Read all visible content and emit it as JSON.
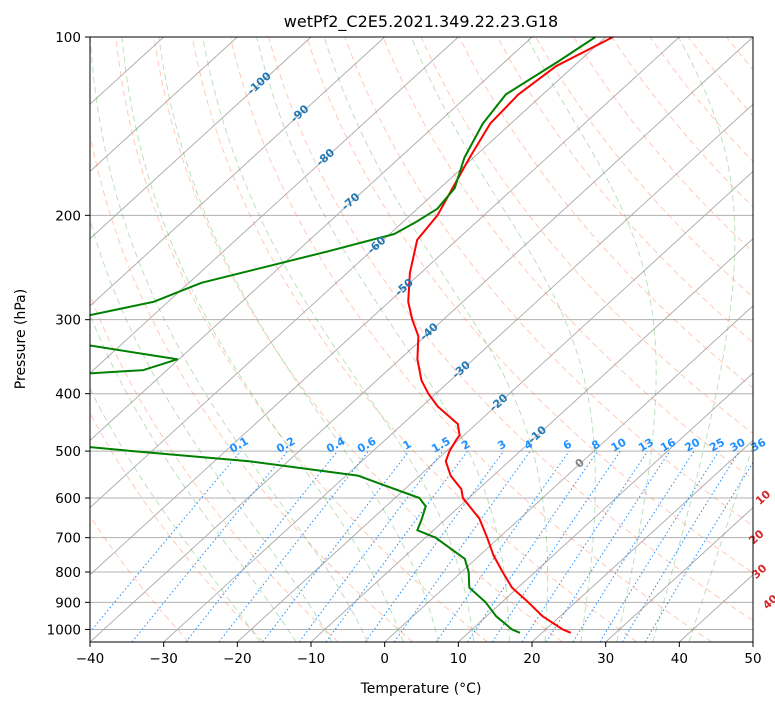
{
  "chart_data": {
    "type": "line",
    "diagram": "skew-T log-P",
    "title": "wetPf2_C2E5.2021.349.22.23.G18",
    "xlabel": "Temperature (°C)",
    "ylabel": "Pressure (hPa)",
    "xlim": [
      -40,
      50
    ],
    "ylim": [
      1050,
      100
    ],
    "y_scale": "log",
    "x_ticks": [
      "−40",
      "−30",
      "−20",
      "−10",
      "0",
      "10",
      "20",
      "30",
      "40",
      "50"
    ],
    "y_ticks": [
      "100",
      "200",
      "300",
      "400",
      "500",
      "600",
      "700",
      "800",
      "900",
      "1000"
    ],
    "y_tick_values": [
      100,
      200,
      300,
      400,
      500,
      600,
      700,
      800,
      900,
      1000
    ],
    "grid": true,
    "colors": {
      "temperature": "#ff0000",
      "dewpoint": "#008000",
      "isotherm_labels": "#1f77b4",
      "mixing_ratio": "#1e90ff",
      "dry_adiabat": "#ff7f50",
      "moist_adiabat": "#2ca02c",
      "theta_e_labels": "#d62728"
    },
    "series": [
      {
        "name": "Temperature",
        "points": [
          [
            100,
            -59.0
          ],
          [
            112,
            -62.4
          ],
          [
            125,
            -63.3
          ],
          [
            140,
            -62.8
          ],
          [
            160,
            -60.5
          ],
          [
            180,
            -58.3
          ],
          [
            200,
            -56.3
          ],
          [
            220,
            -55.4
          ],
          [
            250,
            -51.5
          ],
          [
            280,
            -47.4
          ],
          [
            300,
            -44.2
          ],
          [
            320,
            -40.9
          ],
          [
            350,
            -37.6
          ],
          [
            380,
            -33.9
          ],
          [
            400,
            -31.0
          ],
          [
            420,
            -27.9
          ],
          [
            450,
            -22.5
          ],
          [
            470,
            -20.6
          ],
          [
            480,
            -20.3
          ],
          [
            500,
            -19.6
          ],
          [
            520,
            -18.6
          ],
          [
            550,
            -15.8
          ],
          [
            580,
            -12.3
          ],
          [
            600,
            -10.8
          ],
          [
            650,
            -5.5
          ],
          [
            700,
            -1.6
          ],
          [
            750,
            1.9
          ],
          [
            800,
            5.6
          ],
          [
            850,
            9.2
          ],
          [
            900,
            13.6
          ],
          [
            950,
            17.6
          ],
          [
            1000,
            22.3
          ],
          [
            1013,
            23.9
          ]
        ]
      },
      {
        "name": "Dewpoint",
        "points": [
          [
            100,
            -61.4
          ],
          [
            110,
            -62.8
          ],
          [
            125,
            -65.0
          ],
          [
            140,
            -63.8
          ],
          [
            160,
            -61.2
          ],
          [
            180,
            -58.0
          ],
          [
            195,
            -57.3
          ],
          [
            205,
            -58.2
          ],
          [
            215,
            -59.4
          ],
          [
            230,
            -65.8
          ],
          [
            260,
            -78.3
          ],
          [
            280,
            -82.0
          ],
          [
            295,
            -88.7
          ],
          [
            310,
            -89.4
          ],
          [
            330,
            -85.4
          ],
          [
            350,
            -70.2
          ],
          [
            365,
            -73.2
          ],
          [
            375,
            -87.6
          ],
          [
            385,
            -95.5
          ],
          [
            400,
            -98.4
          ],
          [
            420,
            -100.6
          ],
          [
            450,
            -107.6
          ],
          [
            460,
            -79.6
          ],
          [
            470,
            -79.6
          ],
          [
            478,
            -84.3
          ],
          [
            490,
            -71.0
          ],
          [
            500,
            -62.6
          ],
          [
            520,
            -45.3
          ],
          [
            550,
            -28.4
          ],
          [
            600,
            -16.7
          ],
          [
            620,
            -14.6
          ],
          [
            650,
            -13.3
          ],
          [
            680,
            -12.2
          ],
          [
            700,
            -8.6
          ],
          [
            760,
            -1.5
          ],
          [
            800,
            1.0
          ],
          [
            850,
            3.4
          ],
          [
            900,
            7.8
          ],
          [
            950,
            11.3
          ],
          [
            1000,
            15.4
          ],
          [
            1013,
            17.0
          ]
        ]
      }
    ],
    "isotherm_labels": [
      {
        "t": -100,
        "p": 120,
        "text": "-100"
      },
      {
        "t": -90,
        "p": 135,
        "text": "-90"
      },
      {
        "t": -80,
        "p": 160,
        "text": "-80"
      },
      {
        "t": -70,
        "p": 190,
        "text": "-70"
      },
      {
        "t": -60,
        "p": 225,
        "text": "-60"
      },
      {
        "t": -50,
        "p": 265,
        "text": "-50"
      },
      {
        "t": -40,
        "p": 315,
        "text": "-40"
      },
      {
        "t": -30,
        "p": 365,
        "text": "-30"
      },
      {
        "t": -20,
        "p": 415,
        "text": "-20"
      },
      {
        "t": -10,
        "p": 470,
        "text": "-10"
      },
      {
        "t": 0,
        "p": 525,
        "text": "0"
      }
    ],
    "mixing_ratio_labels": [
      "0.1",
      "0.2",
      "0.4",
      "0.6",
      "1",
      "1.5",
      "2",
      "3",
      "4",
      "6",
      "8",
      "10",
      "13",
      "16",
      "20",
      "25",
      "30",
      "36"
    ],
    "mixing_ratio_values": [
      0.1,
      0.2,
      0.4,
      0.6,
      1,
      1.5,
      2,
      3,
      4,
      6,
      8,
      10,
      13,
      16,
      20,
      25,
      30,
      36
    ],
    "theta_e_labels": [
      {
        "text": "10",
        "t": 30,
        "p": 600
      },
      {
        "text": "20",
        "t": 35,
        "p": 700
      },
      {
        "text": "30",
        "t": 40.5,
        "p": 800
      },
      {
        "text": "40",
        "t": 46.5,
        "p": 900
      }
    ]
  }
}
